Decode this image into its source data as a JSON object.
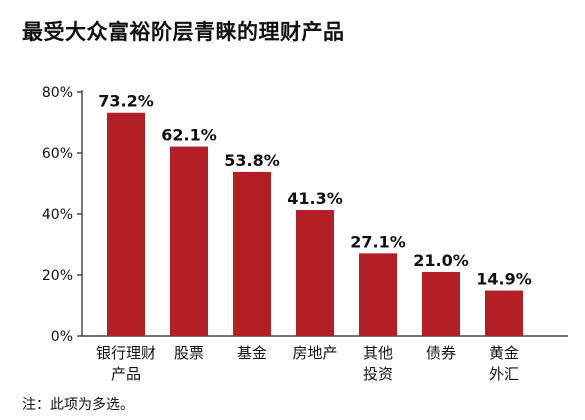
{
  "chart_data": {
    "type": "bar",
    "title": "最受大众富裕阶层青睐的理财产品",
    "categories": [
      [
        "银行理财",
        "产品"
      ],
      [
        "股票"
      ],
      [
        "基金"
      ],
      [
        "房地产"
      ],
      [
        "其他",
        "投资"
      ],
      [
        "债券"
      ],
      [
        "黄金",
        "外汇"
      ]
    ],
    "values": [
      73.2,
      62.1,
      53.8,
      41.3,
      27.1,
      21.0,
      14.9
    ],
    "value_labels": [
      "73.2%",
      "62.1%",
      "53.8%",
      "41.3%",
      "27.1%",
      "21.0%",
      "14.9%"
    ],
    "yticks": [
      0,
      20,
      40,
      60,
      80
    ],
    "ytick_labels": [
      "0%",
      "20%",
      "40%",
      "60%",
      "80%"
    ],
    "ylim": [
      0,
      80
    ],
    "grid": false,
    "bar_color": "#b21f24",
    "note": "注：此项为多选。"
  }
}
